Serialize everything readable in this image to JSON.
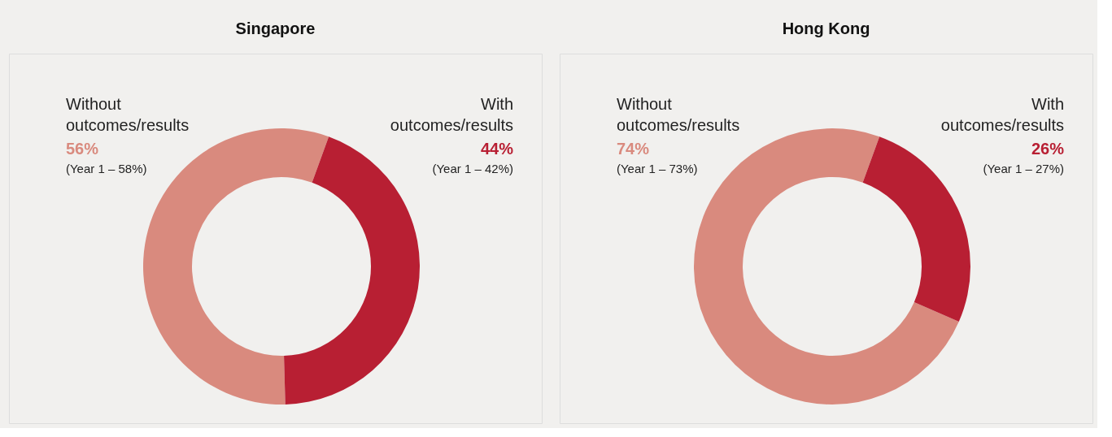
{
  "chart_data": [
    {
      "type": "donut",
      "title": "Singapore",
      "categories": [
        "Without outcomes/results",
        "With outcomes/results"
      ],
      "values": [
        56,
        44
      ],
      "colors": [
        "#d98a7e",
        "#b81f33"
      ],
      "value_labels": [
        "56%",
        "44%"
      ],
      "annotations": [
        "(Year 1 – 58%)",
        "(Year 1 – 42%)"
      ],
      "legend": false
    },
    {
      "type": "donut",
      "title": "Hong Kong",
      "categories": [
        "Without outcomes/results",
        "With outcomes/results"
      ],
      "values": [
        74,
        26
      ],
      "colors": [
        "#d98a7e",
        "#b81f33"
      ],
      "value_labels": [
        "74%",
        "26%"
      ],
      "annotations": [
        "(Year 1 – 73%)",
        "(Year 1 – 27%)"
      ],
      "legend": false
    }
  ]
}
